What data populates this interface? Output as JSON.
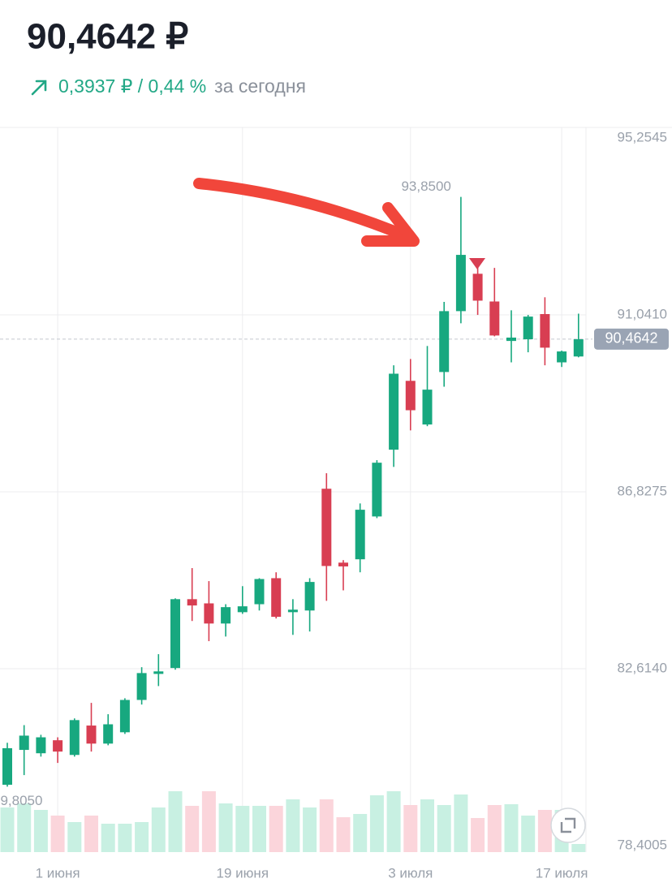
{
  "header": {
    "price": "90,4642 ₽",
    "change": "0,3937 ₽ / 0,44 %",
    "period": "за сегодня"
  },
  "chart_data": {
    "type": "candlestick",
    "categories": [
      null,
      null,
      null,
      "1 июня",
      null,
      null,
      null,
      null,
      null,
      null,
      null,
      null,
      null,
      null,
      "19 июня",
      null,
      null,
      null,
      null,
      null,
      null,
      null,
      null,
      null,
      "3 июля",
      null,
      null,
      null,
      null,
      null,
      null,
      null,
      null,
      "17 июля",
      null
    ],
    "open": [
      79.85,
      80.68,
      80.6,
      80.91,
      80.56,
      81.26,
      80.83,
      81.1,
      81.87,
      82.49,
      82.63,
      84.27,
      84.17,
      83.69,
      83.96,
      84.15,
      84.77,
      83.96,
      84.0,
      86.9,
      85.14,
      85.22,
      86.24,
      87.83,
      89.47,
      88.43,
      89.68,
      91.13,
      92.02,
      91.36,
      90.42,
      90.46,
      91.06,
      89.91,
      90.05
    ],
    "high": [
      80.85,
      81.27,
      81.04,
      80.98,
      81.43,
      81.8,
      81.53,
      81.91,
      82.65,
      82.96,
      84.29,
      85.01,
      84.7,
      84.15,
      84.58,
      84.77,
      84.91,
      84.27,
      84.77,
      87.27,
      85.2,
      86.55,
      87.58,
      89.84,
      89.99,
      90.3,
      91.35,
      93.85,
      92.31,
      92.16,
      91.15,
      91.04,
      91.46,
      90.19,
      91.07
    ],
    "low": [
      79.805,
      80.08,
      80.52,
      80.37,
      80.52,
      80.64,
      80.79,
      81.06,
      81.76,
      82.2,
      82.59,
      83.75,
      83.27,
      83.38,
      83.92,
      84.0,
      83.81,
      83.42,
      83.5,
      84.23,
      84.48,
      84.91,
      86.2,
      87.42,
      88.29,
      88.39,
      89.33,
      90.84,
      91.04,
      90.53,
      89.91,
      90.15,
      89.84,
      89.8,
      90.03
    ],
    "close": [
      80.72,
      81.02,
      80.98,
      80.64,
      81.39,
      80.83,
      81.29,
      81.87,
      82.51,
      82.55,
      84.27,
      84.12,
      83.69,
      84.08,
      84.1,
      84.75,
      83.85,
      84.02,
      84.68,
      85.06,
      85.05,
      86.4,
      87.52,
      89.64,
      88.77,
      89.26,
      91.13,
      92.47,
      91.38,
      90.55,
      90.5,
      91.0,
      90.26,
      90.17,
      90.46
    ],
    "volume": [
      55,
      60,
      52,
      45,
      37,
      45,
      35,
      35,
      37,
      55,
      75,
      57,
      75,
      60,
      57,
      57,
      57,
      65,
      55,
      65,
      43,
      47,
      70,
      75,
      58,
      65,
      58,
      71,
      42,
      58,
      59,
      45,
      52,
      52,
      10
    ],
    "ylim": [
      78.4005,
      95.2545
    ],
    "yticks": [
      {
        "value": 95.2545,
        "label": "95,2545"
      },
      {
        "value": 91.041,
        "label": "91,0410"
      },
      {
        "value": 86.8275,
        "label": "86,8275"
      },
      {
        "value": 82.614,
        "label": "82,6140"
      },
      {
        "value": 78.4005,
        "label": "78,4005"
      }
    ],
    "last": {
      "value": 90.4642,
      "label": "90,4642"
    },
    "max_label": "93,8500",
    "min_label": "79,8050",
    "up_color": "#17a87f",
    "down_color": "#d83e52",
    "up_volume_color": "#c8f0e2",
    "down_volume_color": "#fbd5db",
    "grid": true
  }
}
